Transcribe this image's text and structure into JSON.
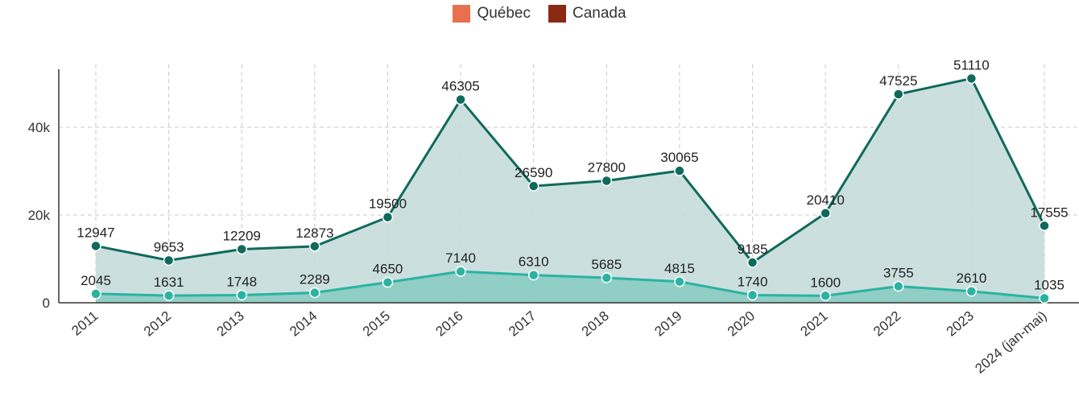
{
  "legend": {
    "items": [
      {
        "label": "Québec",
        "color": "#e8704f"
      },
      {
        "label": "Canada",
        "color": "#8b2a12"
      }
    ]
  },
  "chart_data": {
    "type": "area",
    "categories": [
      "2011",
      "2012",
      "2013",
      "2014",
      "2015",
      "2016",
      "2017",
      "2018",
      "2019",
      "2020",
      "2021",
      "2022",
      "2023",
      "2024 (jan-mai)"
    ],
    "series": [
      {
        "name": "Canada",
        "color": "#0f6a5c",
        "fill": "#c6dcdb",
        "values": [
          12947,
          9653,
          12209,
          12873,
          19500,
          46305,
          26590,
          27800,
          30065,
          9185,
          20410,
          47525,
          51110,
          17555
        ]
      },
      {
        "name": "Québec",
        "color": "#2bb3a2",
        "fill": "#86cbc1",
        "values": [
          2045,
          1631,
          1748,
          2289,
          4650,
          7140,
          6310,
          5685,
          4815,
          1740,
          1600,
          3755,
          2610,
          1035
        ]
      }
    ],
    "yticks": [
      {
        "value": 0,
        "label": "0"
      },
      {
        "value": 20000,
        "label": "20k"
      },
      {
        "value": 40000,
        "label": "40k"
      }
    ],
    "ylim": [
      0,
      54000
    ],
    "grid": true,
    "legend_position": "top-center"
  }
}
